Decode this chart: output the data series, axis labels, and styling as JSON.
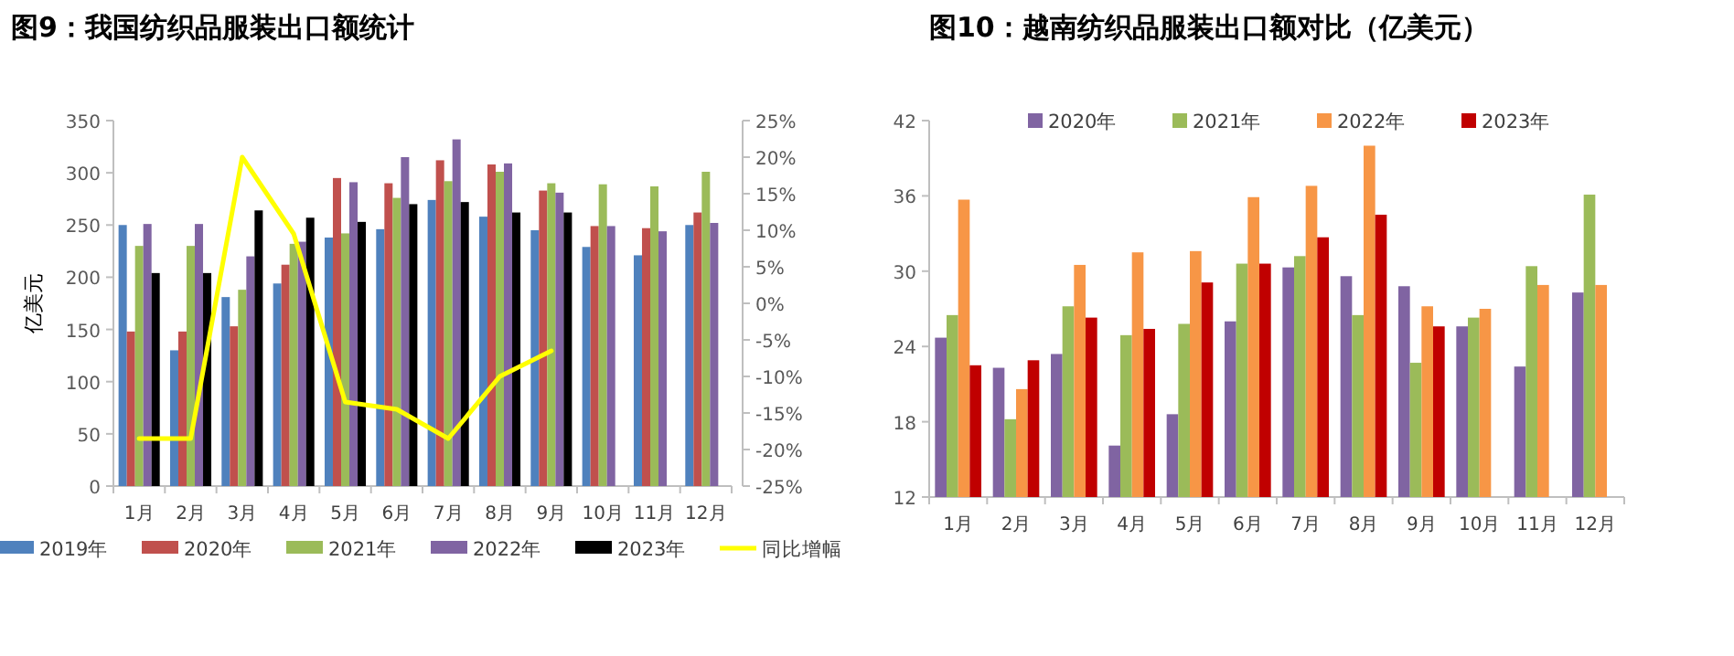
{
  "chart_data": [
    {
      "type": "bar",
      "title": "图9：我国纺织品服装出口额统计",
      "ylabel": "亿美元",
      "categories": [
        "1月",
        "2月",
        "3月",
        "4月",
        "5月",
        "6月",
        "7月",
        "8月",
        "9月",
        "10月",
        "11月",
        "12月"
      ],
      "series": [
        {
          "name": "2019年",
          "color": "#4f81bd",
          "values": [
            250,
            130,
            181,
            194,
            238,
            246,
            274,
            258,
            245,
            229,
            221,
            250
          ]
        },
        {
          "name": "2020年",
          "color": "#c0504d",
          "values": [
            148,
            148,
            153,
            212,
            295,
            290,
            312,
            308,
            283,
            249,
            247,
            262
          ]
        },
        {
          "name": "2021年",
          "color": "#9bbb59",
          "values": [
            230,
            230,
            188,
            232,
            242,
            276,
            292,
            301,
            290,
            289,
            287,
            301
          ]
        },
        {
          "name": "2022年",
          "color": "#8064a2",
          "values": [
            251,
            251,
            220,
            234,
            291,
            315,
            332,
            309,
            281,
            249,
            244,
            252
          ]
        },
        {
          "name": "2023年",
          "color": "#000000",
          "values": [
            204,
            204,
            264,
            257,
            253,
            270,
            272,
            262,
            262,
            null,
            null,
            null
          ]
        },
        {
          "name": "同比增幅",
          "type": "line",
          "axis": "y2",
          "color": "#ffff00",
          "values": [
            -18.5,
            -18.5,
            20,
            9.5,
            -13.5,
            -14.5,
            -18.5,
            -10,
            -6.5,
            null,
            null,
            null
          ]
        }
      ],
      "ylim": [
        0,
        350
      ],
      "yticks": [
        0,
        50,
        100,
        150,
        200,
        250,
        300,
        350
      ],
      "y2lim": [
        -25,
        25
      ],
      "y2ticks": [
        {
          "value": -25,
          "label": "-25%"
        },
        {
          "value": -20,
          "label": "-20%"
        },
        {
          "value": -15,
          "label": "-15%"
        },
        {
          "value": -10,
          "label": "-10%"
        },
        {
          "value": -5,
          "label": "-5%"
        },
        {
          "value": 0,
          "label": "0%"
        },
        {
          "value": 5,
          "label": "5%"
        },
        {
          "value": 10,
          "label": "10%"
        },
        {
          "value": 15,
          "label": "15%"
        },
        {
          "value": 20,
          "label": "20%"
        },
        {
          "value": 25,
          "label": "25%"
        }
      ],
      "legend": "bottom",
      "grid": false
    },
    {
      "type": "bar",
      "title": "图10：越南纺织品服装出口额对比（亿美元）",
      "categories": [
        "1月",
        "2月",
        "3月",
        "4月",
        "5月",
        "6月",
        "7月",
        "8月",
        "9月",
        "10月",
        "11月",
        "12月"
      ],
      "series": [
        {
          "name": "2020年",
          "color": "#8064a2",
          "values": [
            24.7,
            22.3,
            23.4,
            16.1,
            18.6,
            26.0,
            30.3,
            29.6,
            28.8,
            25.6,
            22.4,
            28.3
          ]
        },
        {
          "name": "2021年",
          "color": "#9bbb59",
          "values": [
            26.5,
            18.2,
            27.2,
            24.9,
            25.8,
            30.6,
            31.2,
            26.5,
            22.7,
            26.3,
            30.4,
            36.1
          ]
        },
        {
          "name": "2022年",
          "color": "#f79646",
          "values": [
            35.7,
            20.6,
            30.5,
            31.5,
            31.6,
            35.9,
            36.8,
            40.0,
            27.2,
            27.0,
            28.9,
            28.9
          ]
        },
        {
          "name": "2023年",
          "color": "#c00000",
          "values": [
            22.5,
            22.9,
            26.3,
            25.4,
            29.1,
            30.6,
            32.7,
            34.5,
            25.6,
            null,
            null,
            null
          ]
        }
      ],
      "ylim": [
        12,
        42
      ],
      "yticks": [
        12,
        18,
        24,
        30,
        36,
        42
      ],
      "legend": "top",
      "grid": false
    }
  ]
}
